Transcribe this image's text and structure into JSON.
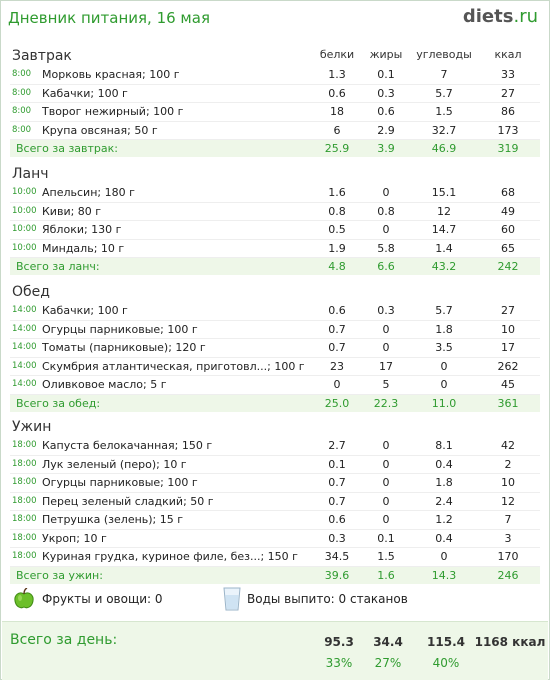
{
  "header": {
    "title": "Дневник питания, 16 мая",
    "logo_main": "diets",
    "logo_tld": ".ru"
  },
  "columns": {
    "protein": "белки",
    "fat": "жиры",
    "carbs": "углеводы",
    "kcal": "ккал"
  },
  "sections": [
    {
      "title": "Завтрак",
      "items": [
        {
          "time": "8:00",
          "food": "Морковь красная; 100 г",
          "protein": "1.3",
          "fat": "0.1",
          "carbs": "7",
          "kcal": "33"
        },
        {
          "time": "8:00",
          "food": "Кабачки; 100 г",
          "protein": "0.6",
          "fat": "0.3",
          "carbs": "5.7",
          "kcal": "27"
        },
        {
          "time": "8:00",
          "food": "Творог нежирный; 100 г",
          "protein": "18",
          "fat": "0.6",
          "carbs": "1.5",
          "kcal": "86"
        },
        {
          "time": "8:00",
          "food": "Крупа овсяная; 50 г",
          "protein": "6",
          "fat": "2.9",
          "carbs": "32.7",
          "kcal": "173"
        }
      ],
      "total": {
        "label": "Всего за завтрак:",
        "protein": "25.9",
        "fat": "3.9",
        "carbs": "46.9",
        "kcal": "319"
      }
    },
    {
      "title": "Ланч",
      "items": [
        {
          "time": "10:00",
          "food": "Апельсин; 180 г",
          "protein": "1.6",
          "fat": "0",
          "carbs": "15.1",
          "kcal": "68"
        },
        {
          "time": "10:00",
          "food": "Киви; 80 г",
          "protein": "0.8",
          "fat": "0.8",
          "carbs": "12",
          "kcal": "49"
        },
        {
          "time": "10:00",
          "food": "Яблоки; 130 г",
          "protein": "0.5",
          "fat": "0",
          "carbs": "14.7",
          "kcal": "60"
        },
        {
          "time": "10:00",
          "food": "Миндаль; 10 г",
          "protein": "1.9",
          "fat": "5.8",
          "carbs": "1.4",
          "kcal": "65"
        }
      ],
      "total": {
        "label": "Всего за ланч:",
        "protein": "4.8",
        "fat": "6.6",
        "carbs": "43.2",
        "kcal": "242"
      }
    },
    {
      "title": "Обед",
      "items": [
        {
          "time": "14:00",
          "food": "Кабачки; 100 г",
          "protein": "0.6",
          "fat": "0.3",
          "carbs": "5.7",
          "kcal": "27"
        },
        {
          "time": "14:00",
          "food": "Огурцы парниковые; 100 г",
          "protein": "0.7",
          "fat": "0",
          "carbs": "1.8",
          "kcal": "10"
        },
        {
          "time": "14:00",
          "food": "Томаты (парниковые); 120 г",
          "protein": "0.7",
          "fat": "0",
          "carbs": "3.5",
          "kcal": "17"
        },
        {
          "time": "14:00",
          "food": "Скумбрия атлантическая, приготовл...; 100 г",
          "protein": "23",
          "fat": "17",
          "carbs": "0",
          "kcal": "262"
        },
        {
          "time": "14:00",
          "food": "Оливковое масло; 5 г",
          "protein": "0",
          "fat": "5",
          "carbs": "0",
          "kcal": "45"
        }
      ],
      "total": {
        "label": "Всего за обед:",
        "protein": "25.0",
        "fat": "22.3",
        "carbs": "11.0",
        "kcal": "361"
      }
    },
    {
      "title": "Ужин",
      "items": [
        {
          "time": "18:00",
          "food": "Капуста белокачанная; 150 г",
          "protein": "2.7",
          "fat": "0",
          "carbs": "8.1",
          "kcal": "42"
        },
        {
          "time": "18:00",
          "food": "Лук зеленый (перо); 10 г",
          "protein": "0.1",
          "fat": "0",
          "carbs": "0.4",
          "kcal": "2"
        },
        {
          "time": "18:00",
          "food": "Огурцы парниковые; 100 г",
          "protein": "0.7",
          "fat": "0",
          "carbs": "1.8",
          "kcal": "10"
        },
        {
          "time": "18:00",
          "food": "Перец зеленый сладкий; 50 г",
          "protein": "0.7",
          "fat": "0",
          "carbs": "2.4",
          "kcal": "12"
        },
        {
          "time": "18:00",
          "food": "Петрушка (зелень); 15 г",
          "protein": "0.6",
          "fat": "0",
          "carbs": "1.2",
          "kcal": "7"
        },
        {
          "time": "18:00",
          "food": "Укроп; 10 г",
          "protein": "0.3",
          "fat": "0.1",
          "carbs": "0.4",
          "kcal": "3"
        },
        {
          "time": "18:00",
          "food": "Куриная грудка, куриное филе, без...; 150 г",
          "protein": "34.5",
          "fat": "1.5",
          "carbs": "0",
          "kcal": "170"
        }
      ],
      "total": {
        "label": "Всего за ужин:",
        "protein": "39.6",
        "fat": "1.6",
        "carbs": "14.3",
        "kcal": "246"
      }
    }
  ],
  "extras": {
    "fruits_label": "Фрукты и овощи: 0",
    "water_label": "Воды выпито: 0 стаканов",
    "fruits_icon": "apple-icon",
    "water_icon": "glass-icon"
  },
  "day_total": {
    "label": "Всего за день:",
    "protein": "95.3",
    "fat": "34.4",
    "carbs": "115.4",
    "kcal": "1168 ккал",
    "protein_pct": "33%",
    "fat_pct": "27%",
    "carbs_pct": "40%"
  },
  "colors": {
    "accent_green": "#2f9b2f",
    "total_bg": "#eef7e8"
  }
}
